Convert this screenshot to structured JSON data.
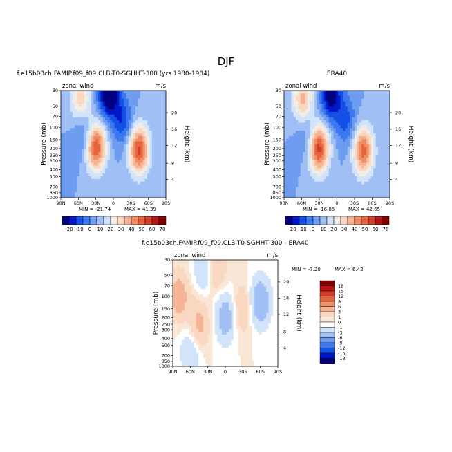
{
  "page_title": "DJF",
  "colors": {
    "pos_scale": [
      "#000080",
      "#0018c8",
      "#1450e6",
      "#3c78f0",
      "#6e9cf0",
      "#a0c0f5",
      "#d2e4fa",
      "#f2ece6",
      "#fad7c0",
      "#f5b496",
      "#f08c64",
      "#e6643c",
      "#d23c28",
      "#b41414",
      "#800000"
    ],
    "diff_scale": [
      "#000080",
      "#0018c8",
      "#1450e6",
      "#3c78f0",
      "#6e9cf0",
      "#a0c0f5",
      "#d2e4fa",
      "#ffffff",
      "#fae6d4",
      "#fad7c0",
      "#f5b496",
      "#f08c64",
      "#e6643c",
      "#d23c28",
      "#b41414",
      "#800000"
    ]
  },
  "chart_data": [
    {
      "type": "heatmap",
      "id": "model",
      "title": "f.e15b03ch.FAMIP.f09_f09.CLB-T0-SGHHT-300 (yrs 1980-1984)",
      "variable": "zonal wind",
      "units": "m/s",
      "ylabel": "Pressure (mb)",
      "y2label": "Height (km)",
      "x_ticks": [
        "90N",
        "60N",
        "30N",
        "0",
        "30S",
        "60S",
        "90S"
      ],
      "y_ticks": [
        "30",
        "50",
        "70",
        "100",
        "150",
        "200",
        "250",
        "300",
        "400",
        "500",
        "700",
        "850",
        "1000"
      ],
      "y2_ticks": [
        "20",
        "16",
        "12",
        "8",
        "4"
      ],
      "min_label": "MIN = -21.74",
      "max_label": "MAX = 41.39",
      "features": [
        {
          "lat": 56,
          "p": 40,
          "amp": 18
        },
        {
          "lat": 30,
          "p": 190,
          "amp": 36
        },
        {
          "lat": -44,
          "p": 210,
          "amp": 36
        },
        {
          "lat": 8,
          "p": 32,
          "amp": -30
        },
        {
          "lat": 50,
          "p": 130,
          "amp": -10
        },
        {
          "lat": -15,
          "p": 80,
          "amp": -14
        }
      ]
    },
    {
      "type": "heatmap",
      "id": "obs",
      "title": "ERA40",
      "variable": "zonal wind",
      "units": "m/s",
      "ylabel": "Pressure (mb)",
      "y2label": "Height (km)",
      "x_ticks": [
        "90N",
        "60N",
        "30N",
        "0",
        "30S",
        "60S",
        "90S"
      ],
      "y_ticks": [
        "30",
        "50",
        "70",
        "100",
        "150",
        "200",
        "250",
        "300",
        "400",
        "500",
        "700",
        "850",
        "1000"
      ],
      "y2_ticks": [
        "20",
        "16",
        "12",
        "8",
        "4"
      ],
      "min_label": "MIN = -16.85",
      "max_label": "MAX = 42.65",
      "features": [
        {
          "lat": 58,
          "p": 40,
          "amp": 22
        },
        {
          "lat": 31,
          "p": 200,
          "amp": 38
        },
        {
          "lat": -45,
          "p": 215,
          "amp": 32
        },
        {
          "lat": 10,
          "p": 35,
          "amp": -24
        },
        {
          "lat": 50,
          "p": 130,
          "amp": -8
        },
        {
          "lat": -15,
          "p": 80,
          "amp": -12
        }
      ]
    },
    {
      "type": "heatmap",
      "id": "diff",
      "title": "f.e15b03ch.FAMIP.f09_f09.CLB-T0-SGHHT-300 - ERA40",
      "variable": "zonal wind",
      "units": "m/s",
      "ylabel": "Pressure (mb)",
      "y2label": "Height (km)",
      "x_ticks": [
        "90N",
        "60N",
        "30N",
        "0",
        "30S",
        "60S",
        "90S"
      ],
      "y_ticks": [
        "30",
        "50",
        "70",
        "100",
        "150",
        "200",
        "250",
        "300",
        "400",
        "500",
        "700",
        "850",
        "1000"
      ],
      "y2_ticks": [
        "20",
        "16",
        "12",
        "8",
        "4"
      ],
      "min_label": "MIN = -7.20",
      "max_label": "MAX = 6.42",
      "features": [
        {
          "lat": 80,
          "p": 100,
          "amp": 5
        },
        {
          "lat": 45,
          "p": 250,
          "amp": 4
        },
        {
          "lat": -30,
          "p": 150,
          "amp": 3
        },
        {
          "lat": 18,
          "p": 40,
          "amp": 4
        },
        {
          "lat": 60,
          "p": 600,
          "amp": -3
        },
        {
          "lat": 0,
          "p": 200,
          "amp": -5
        },
        {
          "lat": -60,
          "p": 120,
          "amp": -6
        },
        {
          "lat": 35,
          "p": 40,
          "amp": -4
        }
      ]
    }
  ],
  "colorbars": {
    "pos_labels": [
      "-20",
      "-10",
      "0",
      "10",
      "20",
      "30",
      "40",
      "50",
      "60",
      "70"
    ],
    "diff_labels": [
      "18",
      "15",
      "12",
      "9",
      "6",
      "3",
      "1",
      "0",
      "-1",
      "-3",
      "-6",
      "-9",
      "-12",
      "-15",
      "-18"
    ]
  }
}
